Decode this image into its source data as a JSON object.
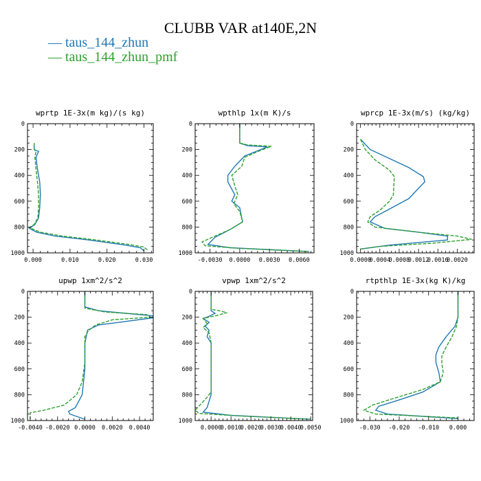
{
  "title": "CLUBB VAR at140E,2N",
  "legend": [
    {
      "label": "taus_144_zhun",
      "color": "#1f77b4",
      "dash": "solid"
    },
    {
      "label": "taus_144_zhun_pmf",
      "color": "#2ca02c",
      "dash": "dashed"
    }
  ],
  "chart_data": [
    {
      "type": "line",
      "title": "wprtp  1E-3x(m kg)/(s kg)",
      "xlim": [
        -0.0015,
        0.0325
      ],
      "ylim": [
        1000,
        0
      ],
      "xticks": [
        0,
        0.01,
        0.02,
        0.03
      ],
      "xticklabels": [
        "0.000",
        "0.010",
        "0.020",
        "0.030"
      ],
      "yticks": [
        0,
        200,
        400,
        600,
        800,
        1000
      ],
      "yticklabels": [
        "0",
        "200",
        "400",
        "600",
        "800",
        "1000"
      ],
      "series": [
        {
          "name": "taus_144_zhun",
          "points": [
            [
              0.0003,
              150
            ],
            [
              0.0003,
              200
            ],
            [
              0.0015,
              215
            ],
            [
              0.0008,
              260
            ],
            [
              0.0012,
              350
            ],
            [
              0.0018,
              450
            ],
            [
              0.002,
              550
            ],
            [
              0.0018,
              650
            ],
            [
              0.0015,
              730
            ],
            [
              0.0005,
              780
            ],
            [
              -0.001,
              810
            ],
            [
              0.001,
              840
            ],
            [
              0.006,
              870
            ],
            [
              0.015,
              900
            ],
            [
              0.025,
              940
            ],
            [
              0.029,
              960
            ],
            [
              0.03,
              985
            ]
          ]
        },
        {
          "name": "taus_144_zhun_pmf",
          "points": [
            [
              0.0003,
              150
            ],
            [
              0.0003,
              200
            ],
            [
              0.0008,
              215
            ],
            [
              0.0005,
              260
            ],
            [
              0.0008,
              350
            ],
            [
              0.0012,
              450
            ],
            [
              0.0015,
              550
            ],
            [
              0.0015,
              650
            ],
            [
              0.0013,
              730
            ],
            [
              0.0003,
              780
            ],
            [
              -0.001,
              805
            ],
            [
              0.002,
              840
            ],
            [
              0.008,
              870
            ],
            [
              0.017,
              900
            ],
            [
              0.026,
              935
            ],
            [
              0.03,
              955
            ],
            [
              0.031,
              980
            ]
          ]
        }
      ]
    },
    {
      "type": "line",
      "title": "wpthlp  1x(m K)/s",
      "xlim": [
        -0.0045,
        0.0075
      ],
      "ylim": [
        1000,
        0
      ],
      "xticks": [
        -0.003,
        0,
        0.003,
        0.006
      ],
      "xticklabels": [
        "-0.0030",
        "0.0000",
        "0.0030",
        "0.0060"
      ],
      "yticks": [
        0,
        200,
        400,
        600,
        800,
        1000
      ],
      "yticklabels": [
        "0",
        "200",
        "400",
        "600",
        "800",
        "1000"
      ],
      "series": [
        {
          "name": "taus_144_zhun",
          "points": [
            [
              0,
              0
            ],
            [
              0,
              150
            ],
            [
              0.0008,
              170
            ],
            [
              0.0028,
              180
            ],
            [
              0.0018,
              210
            ],
            [
              0.0005,
              250
            ],
            [
              -0.0005,
              330
            ],
            [
              -0.0012,
              400
            ],
            [
              -0.0012,
              450
            ],
            [
              -0.0005,
              550
            ],
            [
              -0.0008,
              600
            ],
            [
              0,
              650
            ],
            [
              0.0002,
              730
            ],
            [
              0.0003,
              760
            ],
            [
              -0.001,
              820
            ],
            [
              -0.0025,
              880
            ],
            [
              -0.0032,
              935
            ],
            [
              -0.001,
              960
            ],
            [
              0.007,
              990
            ]
          ]
        },
        {
          "name": "taus_144_zhun_pmf",
          "points": [
            [
              0,
              0
            ],
            [
              0,
              150
            ],
            [
              0.0008,
              165
            ],
            [
              0.0032,
              175
            ],
            [
              0.002,
              210
            ],
            [
              0.0005,
              260
            ],
            [
              0.0002,
              330
            ],
            [
              -0.0008,
              400
            ],
            [
              -0.0005,
              480
            ],
            [
              -0.0002,
              550
            ],
            [
              -0.0006,
              620
            ],
            [
              0,
              680
            ],
            [
              0.0003,
              760
            ],
            [
              -0.001,
              820
            ],
            [
              -0.0025,
              870
            ],
            [
              -0.0038,
              915
            ],
            [
              -0.0035,
              945
            ],
            [
              0,
              965
            ],
            [
              0.007,
              990
            ]
          ]
        }
      ]
    },
    {
      "type": "line",
      "title": "wprcp  1E-3x(m/s) (kg/kg)",
      "xlim": [
        -8e-05,
        0.00235
      ],
      "ylim": [
        1000,
        0
      ],
      "xticks": [
        0,
        0.0004,
        0.0008,
        0.0012,
        0.0016,
        0.002
      ],
      "xticklabels": [
        "0.0000",
        "0.0004",
        "0.0008",
        "0.0012",
        "0.0016",
        "0.0020"
      ],
      "yticks": [
        0,
        200,
        400,
        600,
        800,
        1000
      ],
      "yticklabels": [
        "0",
        "200",
        "400",
        "600",
        "800",
        "1000"
      ],
      "series": [
        {
          "name": "taus_144_zhun",
          "points": [
            [
              0,
              120
            ],
            [
              0.0002,
              200
            ],
            [
              0.0006,
              270
            ],
            [
              0.001,
              340
            ],
            [
              0.0013,
              410
            ],
            [
              0.00133,
              450
            ],
            [
              0.0012,
              500
            ],
            [
              0.001,
              580
            ],
            [
              0.0006,
              660
            ],
            [
              0.0003,
              720
            ],
            [
              0.0002,
              760
            ],
            [
              0.0005,
              810
            ],
            [
              0.0012,
              840
            ],
            [
              0.0018,
              870
            ],
            [
              0.0018,
              900
            ],
            [
              0.0006,
              940
            ],
            [
              0,
              970
            ]
          ]
        },
        {
          "name": "taus_144_zhun_pmf",
          "points": [
            [
              0,
              120
            ],
            [
              0.0001,
              200
            ],
            [
              0.0003,
              280
            ],
            [
              0.0006,
              360
            ],
            [
              0.0007,
              410
            ],
            [
              0.00068,
              550
            ],
            [
              0.0006,
              600
            ],
            [
              0.0004,
              670
            ],
            [
              0.0002,
              720
            ],
            [
              0.00015,
              760
            ],
            [
              0.0003,
              800
            ],
            [
              0.0012,
              840
            ],
            [
              0.002,
              870
            ],
            [
              0.0023,
              895
            ],
            [
              0.0015,
              925
            ],
            [
              0.0004,
              950
            ],
            [
              0,
              970
            ]
          ]
        }
      ]
    },
    {
      "type": "line",
      "title": "upwp  1xm^2/s^2",
      "xlim": [
        -0.0042,
        0.005
      ],
      "ylim": [
        1000,
        0
      ],
      "xticks": [
        -0.004,
        -0.002,
        0,
        0.002,
        0.004
      ],
      "xticklabels": [
        "-0.0040",
        "-0.0020",
        "0.0000",
        "0.0020",
        "0.0040"
      ],
      "yticks": [
        0,
        200,
        400,
        600,
        800,
        1000
      ],
      "yticklabels": [
        "0",
        "200",
        "400",
        "600",
        "800",
        "1000"
      ],
      "series": [
        {
          "name": "taus_144_zhun",
          "points": [
            [
              0,
              0
            ],
            [
              0,
              120
            ],
            [
              0.001,
              150
            ],
            [
              0.003,
              170
            ],
            [
              0.005,
              190
            ],
            [
              0.005,
              205
            ],
            [
              0.0025,
              240
            ],
            [
              0.001,
              260
            ],
            [
              0.0002,
              300
            ],
            [
              0,
              400
            ],
            [
              0,
              600
            ],
            [
              -0.0001,
              700
            ],
            [
              -0.0002,
              800
            ],
            [
              -0.0007,
              900
            ],
            [
              -0.0012,
              930
            ],
            [
              -0.0011,
              950
            ],
            [
              0,
              990
            ]
          ]
        },
        {
          "name": "taus_144_zhun_pmf",
          "points": [
            [
              0,
              0
            ],
            [
              0,
              130
            ],
            [
              0.0015,
              160
            ],
            [
              0.0045,
              180
            ],
            [
              0.0048,
              200
            ],
            [
              0.002,
              220
            ],
            [
              0.0008,
              260
            ],
            [
              0.0003,
              300
            ],
            [
              0,
              350
            ],
            [
              0,
              550
            ],
            [
              -0.0002,
              700
            ],
            [
              -0.0006,
              800
            ],
            [
              -0.0015,
              880
            ],
            [
              -0.003,
              920
            ],
            [
              -0.004,
              940
            ],
            [
              -0.004,
              975
            ],
            [
              -0.004,
              990
            ]
          ]
        }
      ]
    },
    {
      "type": "line",
      "title": "vpwp  1xm^2/s^2",
      "xlim": [
        -0.0008,
        0.0051
      ],
      "ylim": [
        1000,
        0
      ],
      "xticks": [
        0,
        0.001,
        0.002,
        0.003,
        0.004,
        0.005
      ],
      "xticklabels": [
        "0.0000",
        "0.0010",
        "0.0020",
        "0.0030",
        "0.0040",
        "0.0050"
      ],
      "yticks": [
        0,
        200,
        400,
        600,
        800,
        1000
      ],
      "yticklabels": [
        "0",
        "200",
        "400",
        "600",
        "800",
        "1000"
      ],
      "series": [
        {
          "name": "taus_144_zhun",
          "points": [
            [
              0,
              0
            ],
            [
              0,
              150
            ],
            [
              0.0002,
              170
            ],
            [
              -0.0002,
              200
            ],
            [
              -0.0004,
              210
            ],
            [
              -0.0001,
              240
            ],
            [
              -0.0003,
              270
            ],
            [
              -0.0001,
              300
            ],
            [
              -0.0002,
              350
            ],
            [
              0,
              400
            ],
            [
              0,
              600
            ],
            [
              0,
              800
            ],
            [
              -0.0001,
              850
            ],
            [
              -0.0002,
              900
            ],
            [
              -0.0004,
              935
            ],
            [
              0.001,
              960
            ],
            [
              0.005,
              990
            ]
          ]
        },
        {
          "name": "taus_144_zhun_pmf",
          "points": [
            [
              0,
              0
            ],
            [
              0,
              140
            ],
            [
              0.0004,
              150
            ],
            [
              0.0008,
              165
            ],
            [
              0.0002,
              190
            ],
            [
              -0.0004,
              210
            ],
            [
              -0.0002,
              250
            ],
            [
              -0.0004,
              280
            ],
            [
              -0.0001,
              320
            ],
            [
              0,
              400
            ],
            [
              0,
              600
            ],
            [
              0,
              780
            ],
            [
              -0.0002,
              820
            ],
            [
              -0.0005,
              870
            ],
            [
              -0.0008,
              920
            ],
            [
              -0.0006,
              945
            ],
            [
              0.0015,
              965
            ],
            [
              0.005,
              990
            ]
          ]
        }
      ]
    },
    {
      "type": "line",
      "title": "rtpthlp  1E-3x(kg K)/kg",
      "xlim": [
        -0.0345,
        0.0055
      ],
      "ylim": [
        1000,
        0
      ],
      "xticks": [
        -0.03,
        -0.02,
        -0.01,
        0
      ],
      "xticklabels": [
        "-0.030",
        "-0.020",
        "-0.010",
        "0.000"
      ],
      "yticks": [
        0,
        200,
        400,
        600,
        800,
        1000
      ],
      "yticklabels": [
        "0",
        "200",
        "400",
        "600",
        "800",
        "1000"
      ],
      "series": [
        {
          "name": "taus_144_zhun",
          "points": [
            [
              0,
              0
            ],
            [
              0,
              200
            ],
            [
              -0.001,
              270
            ],
            [
              -0.004,
              350
            ],
            [
              -0.0065,
              430
            ],
            [
              -0.0075,
              490
            ],
            [
              -0.0075,
              550
            ],
            [
              -0.0065,
              630
            ],
            [
              -0.006,
              700
            ],
            [
              -0.012,
              780
            ],
            [
              -0.02,
              840
            ],
            [
              -0.027,
              890
            ],
            [
              -0.028,
              920
            ],
            [
              -0.024,
              950
            ],
            [
              0,
              985
            ]
          ]
        },
        {
          "name": "taus_144_zhun_pmf",
          "points": [
            [
              0,
              0
            ],
            [
              0,
              200
            ],
            [
              -0.0005,
              270
            ],
            [
              -0.002,
              350
            ],
            [
              -0.004,
              430
            ],
            [
              -0.0055,
              500
            ],
            [
              -0.0055,
              560
            ],
            [
              -0.005,
              630
            ],
            [
              -0.006,
              700
            ],
            [
              -0.012,
              760
            ],
            [
              -0.022,
              830
            ],
            [
              -0.029,
              880
            ],
            [
              -0.032,
              920
            ],
            [
              -0.028,
              950
            ],
            [
              0,
              980
            ]
          ]
        }
      ]
    }
  ]
}
